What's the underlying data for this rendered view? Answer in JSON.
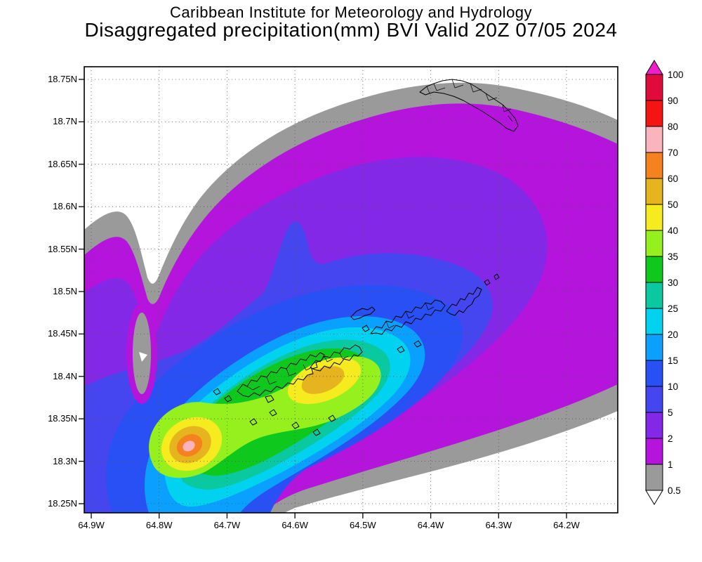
{
  "header": {
    "line1": "Caribbean Institute for Meteorology and Hydrology",
    "line2": "Disaggregated precipitation(mm) BVI Valid 20Z 07/05 2024"
  },
  "axes": {
    "lat_labels": [
      "18.75N",
      "18.7N",
      "18.65N",
      "18.6N",
      "18.55N",
      "18.5N",
      "18.45N",
      "18.4N",
      "18.35N",
      "18.3N",
      "18.25N"
    ],
    "lon_labels": [
      "64.9W",
      "64.8W",
      "64.7W",
      "64.6W",
      "64.5W",
      "64.4W",
      "64.3W",
      "64.2W"
    ]
  },
  "colorbar": {
    "boundary_labels": [
      "100",
      "90",
      "80",
      "70",
      "60",
      "50",
      "40",
      "35",
      "30",
      "25",
      "20",
      "15",
      "10",
      "5",
      "2",
      "1",
      "0.5"
    ],
    "segment_colors": [
      "#e00a3c",
      "#f51414",
      "#fab4be",
      "#f5821e",
      "#e6b41e",
      "#f5eb1e",
      "#96f01e",
      "#0fc81e",
      "#0ac8a0",
      "#00d2f0",
      "#0aa0ff",
      "#2850f5",
      "#4646f0",
      "#8228e6",
      "#b414dc",
      "#9a9a9a"
    ],
    "above_max_color": "#f01ec8",
    "below_min_color": "#ffffff"
  },
  "palette": {
    "white": "#ffffff",
    "gray": "#9a9a9a",
    "magenta": "#b414dc",
    "violet": "#8228e6",
    "blueviolet": "#4646f0",
    "blue": "#2850f5",
    "lightblue": "#0aa0ff",
    "cyan": "#00d2f0",
    "teal": "#0ac8a0",
    "green": "#0fc81e",
    "greenyellow": "#96f01e",
    "yellow": "#f5eb1e",
    "gold": "#e6b41e",
    "orange": "#f5821e",
    "pink": "#fab4be",
    "red": "#f51414",
    "crimson": "#e00a3c",
    "magenta_ext": "#f01ec8"
  },
  "chart_data": {
    "type": "filled_contour_map",
    "title": "Caribbean Institute for Meteorology and Hydrology",
    "subtitle": "Disaggregated precipitation(mm) BVI Valid 20Z 07/05 2024",
    "variable": "Disaggregated precipitation",
    "units": "mm",
    "domain_label": "BVI",
    "valid_time": "20Z 07/05 2024",
    "lon_range_w": [
      64.93,
      64.12
    ],
    "lat_range_n": [
      18.24,
      18.77
    ],
    "lat_ticks_n": [
      18.25,
      18.3,
      18.35,
      18.4,
      18.45,
      18.5,
      18.55,
      18.6,
      18.65,
      18.7,
      18.75
    ],
    "lon_ticks_w": [
      64.9,
      64.8,
      64.7,
      64.6,
      64.5,
      64.4,
      64.3,
      64.2
    ],
    "grid_style": "dotted",
    "contour_levels_mm": [
      0.5,
      1,
      2,
      5,
      10,
      15,
      20,
      25,
      30,
      35,
      40,
      50,
      60,
      70,
      80,
      90,
      100
    ],
    "level_colors": [
      "#9a9a9a",
      "#b414dc",
      "#8228e6",
      "#4646f0",
      "#2850f5",
      "#0aa0ff",
      "#00d2f0",
      "#0ac8a0",
      "#0fc81e",
      "#96f01e",
      "#f5eb1e",
      "#e6b41e",
      "#f5821e",
      "#fab4be",
      "#f51414",
      "#e00a3c",
      "#f01ec8"
    ],
    "legend_position": "right vertical colorbar with over/under arrows",
    "features": [
      {
        "name": "primary precipitation maximum",
        "lon_w": 64.75,
        "lat_n": 18.32,
        "peak_mm": "70-80"
      },
      {
        "name": "secondary precipitation maximum",
        "lon_w": 64.56,
        "lat_n": 18.4,
        "peak_mm": "50-60"
      },
      {
        "name": "local dry minimum",
        "lon_w": 64.83,
        "lat_n": 18.43,
        "min_mm": "<0.5"
      },
      {
        "name": "rain band orientation",
        "value": "SW-NE band across the Virgin Islands, broad 1-10 mm shield north and east"
      }
    ],
    "overlays": [
      "coastlines and watershed polygons of USVI/BVI islands (St. Thomas, St. John, Tortola, Virgin Gorda, Jost Van Dyke, Anegada, small cays)"
    ]
  }
}
